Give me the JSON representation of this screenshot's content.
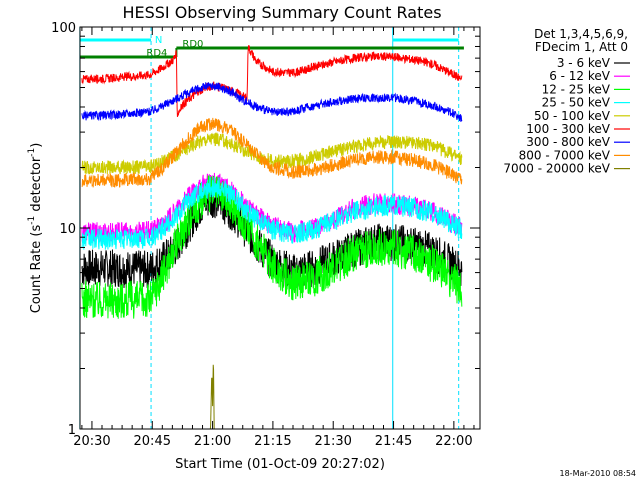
{
  "chart_data": {
    "type": "line",
    "title": "HESSI Observing Summary Count Rates",
    "xlabel": "Start Time (01-Oct-09 20:27:02)",
    "ylabel": "Count Rate (s",
    "ylabel_sup": "-1",
    "ylabel_tail": " detector",
    "ylabel_close": ")",
    "ylog": true,
    "ylim": [
      1,
      100
    ],
    "xlim_min": [
      27.03,
      126.5
    ],
    "x_unit": "minutes after 20:00 UT",
    "x_ticks": [
      {
        "t": 30,
        "label": "20:30"
      },
      {
        "t": 45,
        "label": "20:45"
      },
      {
        "t": 60,
        "label": "21:00"
      },
      {
        "t": 75,
        "label": "21:15"
      },
      {
        "t": 90,
        "label": "21:30"
      },
      {
        "t": 105,
        "label": "21:45"
      },
      {
        "t": 120,
        "label": "22:00"
      }
    ],
    "y_ticks": [
      {
        "v": 1,
        "label": "1"
      },
      {
        "v": 10,
        "label": "10"
      },
      {
        "v": 100,
        "label": "100"
      }
    ],
    "legend_header": [
      "Det 1,3,4,5,6,9,",
      "FDecim 1, Att 0"
    ],
    "legend_position": "right",
    "footer_date": "18-Mar-2010 08:54",
    "flags": [
      {
        "label": "N",
        "color": "#00ffff",
        "segments": [
          [
            27.0,
            44.7
          ],
          [
            104.8,
            121.2
          ]
        ]
      },
      {
        "label": "RD0",
        "color": "#008000",
        "segments": [
          [
            51.0,
            122.5
          ]
        ]
      },
      {
        "label": "RD4",
        "color": "#008000",
        "segments": [
          [
            27.0,
            51.0
          ]
        ]
      }
    ],
    "saa_lines": [
      {
        "t": 27.0,
        "style": "solid"
      },
      {
        "t": 44.7,
        "style": "dashed"
      },
      {
        "t": 104.8,
        "style": "solid"
      },
      {
        "t": 121.2,
        "style": "dashed"
      }
    ],
    "series": [
      {
        "name": "3 - 6 keV",
        "color": "#000000",
        "points": [
          [
            27.5,
            6.3
          ],
          [
            35,
            6.3
          ],
          [
            44.5,
            6.2
          ],
          [
            47,
            6.8
          ],
          [
            50,
            7.5
          ],
          [
            53,
            9.5
          ],
          [
            56,
            12
          ],
          [
            58,
            13.5
          ],
          [
            60,
            14
          ],
          [
            62,
            13.5
          ],
          [
            65,
            12
          ],
          [
            68,
            10
          ],
          [
            71,
            8.3
          ],
          [
            75,
            6.8
          ],
          [
            80,
            6
          ],
          [
            85,
            6.3
          ],
          [
            90,
            7
          ],
          [
            95,
            7.8
          ],
          [
            100,
            8.5
          ],
          [
            105,
            8.5
          ],
          [
            110,
            8.2
          ],
          [
            115,
            7.6
          ],
          [
            120,
            6.5
          ],
          [
            122,
            6.2
          ]
        ]
      },
      {
        "name": "6 - 12 keV",
        "color": "#ff00ff",
        "points": [
          [
            27.5,
            9.5
          ],
          [
            35,
            9.5
          ],
          [
            44.5,
            9.6
          ],
          [
            47,
            10.2
          ],
          [
            50,
            11.5
          ],
          [
            53,
            13.5
          ],
          [
            56,
            15.5
          ],
          [
            58,
            16.5
          ],
          [
            60,
            16.8
          ],
          [
            62,
            16.5
          ],
          [
            65,
            15
          ],
          [
            68,
            13
          ],
          [
            71,
            11.5
          ],
          [
            75,
            10.2
          ],
          [
            80,
            9.5
          ],
          [
            85,
            10
          ],
          [
            90,
            11
          ],
          [
            95,
            12.5
          ],
          [
            100,
            13.2
          ],
          [
            105,
            13.2
          ],
          [
            110,
            12.8
          ],
          [
            115,
            12
          ],
          [
            120,
            10.5
          ],
          [
            122,
            10
          ]
        ]
      },
      {
        "name": "12 - 25 keV",
        "color": "#00ff00",
        "points": [
          [
            27.5,
            4.4
          ],
          [
            35,
            4.4
          ],
          [
            44.5,
            4.4
          ],
          [
            47,
            5.5
          ],
          [
            50,
            7.5
          ],
          [
            53,
            10.3
          ],
          [
            56,
            13
          ],
          [
            58,
            14.5
          ],
          [
            60,
            15
          ],
          [
            62,
            14.5
          ],
          [
            65,
            13
          ],
          [
            68,
            10.5
          ],
          [
            71,
            8.5
          ],
          [
            75,
            6.5
          ],
          [
            80,
            5.3
          ],
          [
            85,
            5.6
          ],
          [
            90,
            6.4
          ],
          [
            95,
            7.4
          ],
          [
            100,
            8
          ],
          [
            105,
            8
          ],
          [
            110,
            7.4
          ],
          [
            115,
            6.6
          ],
          [
            120,
            5.4
          ],
          [
            122,
            5
          ]
        ]
      },
      {
        "name": "25 - 50 keV",
        "color": "#00ffff",
        "points": [
          [
            27.5,
            8.8
          ],
          [
            35,
            8.8
          ],
          [
            44.5,
            8.9
          ],
          [
            47,
            9.6
          ],
          [
            50,
            11
          ],
          [
            53,
            13
          ],
          [
            56,
            14.8
          ],
          [
            58,
            15.8
          ],
          [
            60,
            16
          ],
          [
            62,
            15.8
          ],
          [
            65,
            14.5
          ],
          [
            68,
            12.5
          ],
          [
            71,
            11
          ],
          [
            75,
            9.8
          ],
          [
            80,
            9.3
          ],
          [
            85,
            9.8
          ],
          [
            90,
            10.8
          ],
          [
            95,
            12
          ],
          [
            100,
            12.8
          ],
          [
            105,
            13
          ],
          [
            110,
            12.6
          ],
          [
            115,
            11.8
          ],
          [
            120,
            10.3
          ],
          [
            122,
            9.8
          ]
        ]
      },
      {
        "name": "50 - 100 keV",
        "color": "#cccc00",
        "points": [
          [
            27.5,
            20
          ],
          [
            35,
            20
          ],
          [
            44.5,
            20.2
          ],
          [
            47,
            21.2
          ],
          [
            50,
            22.5
          ],
          [
            53,
            24.5
          ],
          [
            56,
            26.5
          ],
          [
            58,
            27.5
          ],
          [
            60,
            28
          ],
          [
            62,
            27.5
          ],
          [
            65,
            26
          ],
          [
            68,
            24.3
          ],
          [
            71,
            22.8
          ],
          [
            75,
            21.5
          ],
          [
            80,
            21.5
          ],
          [
            85,
            22.5
          ],
          [
            90,
            24
          ],
          [
            95,
            25.5
          ],
          [
            100,
            26.5
          ],
          [
            105,
            27
          ],
          [
            110,
            26.5
          ],
          [
            115,
            25.5
          ],
          [
            120,
            23
          ],
          [
            122,
            22
          ]
        ]
      },
      {
        "name": "100 - 300 keV",
        "color": "#ff0000",
        "points": [
          [
            27.5,
            55
          ],
          [
            35,
            55.5
          ],
          [
            44.5,
            58
          ],
          [
            47,
            62
          ],
          [
            50,
            68
          ],
          [
            51,
            73
          ],
          [
            51.2,
            37
          ],
          [
            53,
            42
          ],
          [
            56,
            47
          ],
          [
            58,
            50
          ],
          [
            60,
            51
          ],
          [
            62,
            50
          ],
          [
            65,
            48
          ],
          [
            67,
            46
          ],
          [
            68.6,
            44
          ],
          [
            68.8,
            80
          ],
          [
            71,
            67
          ],
          [
            75,
            60
          ],
          [
            80,
            59
          ],
          [
            85,
            63
          ],
          [
            90,
            67
          ],
          [
            95,
            70
          ],
          [
            100,
            71.5
          ],
          [
            105,
            71
          ],
          [
            110,
            69
          ],
          [
            115,
            65
          ],
          [
            120,
            58
          ],
          [
            122,
            55
          ]
        ]
      },
      {
        "name": "300 - 800 keV",
        "color": "#0000ff",
        "points": [
          [
            27.5,
            36
          ],
          [
            35,
            36.5
          ],
          [
            44.5,
            38
          ],
          [
            47,
            40
          ],
          [
            50,
            43
          ],
          [
            53,
            46
          ],
          [
            56,
            49
          ],
          [
            58,
            50.5
          ],
          [
            60,
            51
          ],
          [
            62,
            50
          ],
          [
            65,
            47
          ],
          [
            68,
            43
          ],
          [
            71,
            40
          ],
          [
            75,
            37.5
          ],
          [
            80,
            38
          ],
          [
            85,
            40.5
          ],
          [
            90,
            42.5
          ],
          [
            95,
            43.8
          ],
          [
            100,
            44.5
          ],
          [
            105,
            44.5
          ],
          [
            110,
            43
          ],
          [
            115,
            40.5
          ],
          [
            120,
            37
          ],
          [
            122,
            35
          ]
        ]
      },
      {
        "name": "800 - 7000 keV",
        "color": "#ff8c00",
        "points": [
          [
            27.5,
            17.2
          ],
          [
            35,
            17.2
          ],
          [
            44.5,
            17.7
          ],
          [
            47,
            19.5
          ],
          [
            50,
            22.5
          ],
          [
            53,
            26.5
          ],
          [
            56,
            30.5
          ],
          [
            58,
            32.5
          ],
          [
            60,
            33
          ],
          [
            62,
            32.3
          ],
          [
            65,
            30
          ],
          [
            68,
            26.5
          ],
          [
            71,
            23
          ],
          [
            75,
            20
          ],
          [
            80,
            19
          ],
          [
            85,
            19.5
          ],
          [
            90,
            20.5
          ],
          [
            95,
            21.8
          ],
          [
            100,
            22.5
          ],
          [
            105,
            22.5
          ],
          [
            110,
            21.8
          ],
          [
            115,
            20.5
          ],
          [
            120,
            18.3
          ],
          [
            122,
            17.5
          ]
        ]
      },
      {
        "name": "7000 - 20000 keV",
        "color": "#808000",
        "points": [
          [
            52,
            1.0
          ],
          [
            58,
            1.0
          ],
          [
            59.5,
            1.0
          ],
          [
            59.8,
            1.95
          ],
          [
            60.0,
            1.3
          ],
          [
            60.2,
            2.35
          ],
          [
            60.4,
            1.0
          ],
          [
            61,
            1.0
          ],
          [
            65,
            1.0
          ]
        ]
      }
    ]
  }
}
